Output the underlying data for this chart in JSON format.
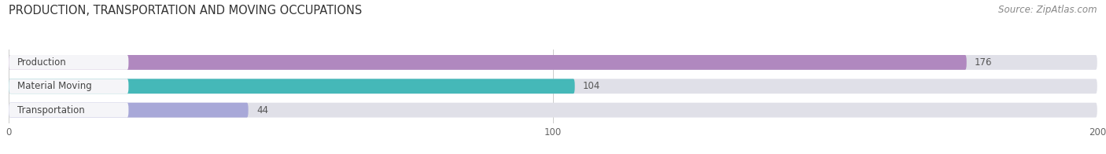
{
  "title": "PRODUCTION, TRANSPORTATION AND MOVING OCCUPATIONS",
  "source": "Source: ZipAtlas.com",
  "categories": [
    "Production",
    "Material Moving",
    "Transportation"
  ],
  "values": [
    176,
    104,
    44
  ],
  "bar_colors": [
    "#b088bf",
    "#45b8b8",
    "#a8a8d8"
  ],
  "bar_bg_color": "#e0e0e8",
  "label_bg_color": "#f5f5f8",
  "xlim": [
    0,
    200
  ],
  "xticks": [
    0,
    100,
    200
  ],
  "title_fontsize": 10.5,
  "source_fontsize": 8.5,
  "label_fontsize": 8.5,
  "value_fontsize": 8.5,
  "background_color": "#ffffff",
  "bar_height": 0.62,
  "fig_width": 14.06,
  "fig_height": 1.96
}
